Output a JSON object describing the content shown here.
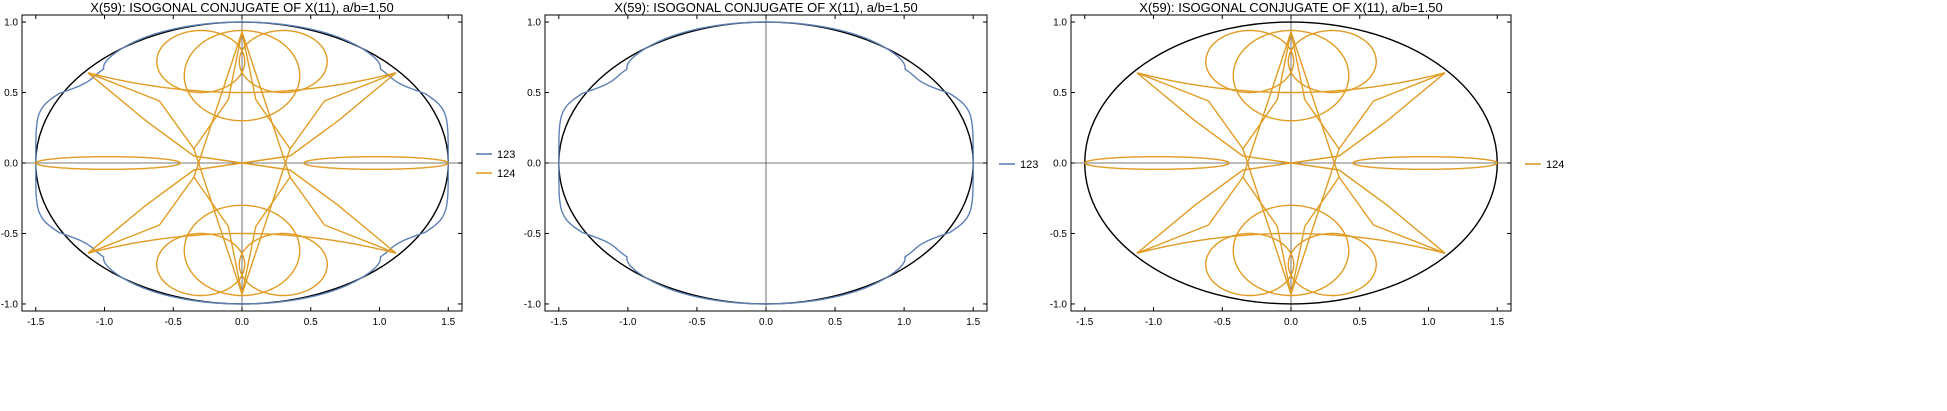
{
  "colors": {
    "s123": "#5e81b5",
    "s124": "#e19c24",
    "ellipse": "#000000",
    "frame": "#000000",
    "axis": "#4d4d4d",
    "text": "#000000"
  },
  "chart_data": [
    {
      "type": "line",
      "title": "X(59): ISOGONAL CONJUGATE OF X(11), a/b=1.50",
      "xlabel": "",
      "ylabel": "",
      "xlim": [
        -1.6,
        1.6
      ],
      "ylim": [
        -1.05,
        1.05
      ],
      "xticks": [
        -1.5,
        -1.0,
        -0.5,
        0.0,
        0.5,
        1.0,
        1.5
      ],
      "xtick_labels": [
        "-1.5",
        "-1.0",
        "-0.5",
        "0.0",
        "0.5",
        "1.0",
        "1.5"
      ],
      "yticks": [
        -1.0,
        -0.5,
        0.0,
        0.5,
        1.0
      ],
      "ytick_labels": [
        "-1.0",
        "-0.5",
        "0.0",
        "0.5",
        "1.0"
      ],
      "grid": false,
      "legend_position": "right",
      "ellipse": {
        "a": 1.5,
        "b": 1.0
      },
      "series": [
        {
          "name": "123",
          "color_key": "s123"
        },
        {
          "name": "124",
          "color_key": "s124"
        }
      ]
    },
    {
      "type": "line",
      "title": "X(59): ISOGONAL CONJUGATE OF X(11), a/b=1.50",
      "xlabel": "",
      "ylabel": "",
      "xlim": [
        -1.6,
        1.6
      ],
      "ylim": [
        -1.05,
        1.05
      ],
      "xticks": [
        -1.5,
        -1.0,
        -0.5,
        0.0,
        0.5,
        1.0,
        1.5
      ],
      "xtick_labels": [
        "-1.5",
        "-1.0",
        "-0.5",
        "0.0",
        "0.5",
        "1.0",
        "1.5"
      ],
      "yticks": [
        -1.0,
        -0.5,
        0.0,
        0.5,
        1.0
      ],
      "ytick_labels": [
        "-1.0",
        "-0.5",
        "0.0",
        "0.5",
        "1.0"
      ],
      "grid": false,
      "legend_position": "right",
      "ellipse": {
        "a": 1.5,
        "b": 1.0
      },
      "series": [
        {
          "name": "123",
          "color_key": "s123"
        }
      ]
    },
    {
      "type": "line",
      "title": "X(59): ISOGONAL CONJUGATE OF X(11), a/b=1.50",
      "xlabel": "",
      "ylabel": "",
      "xlim": [
        -1.6,
        1.6
      ],
      "ylim": [
        -1.05,
        1.05
      ],
      "xticks": [
        -1.5,
        -1.0,
        -0.5,
        0.0,
        0.5,
        1.0,
        1.5
      ],
      "xtick_labels": [
        "-1.5",
        "-1.0",
        "-0.5",
        "0.0",
        "0.5",
        "1.0",
        "1.5"
      ],
      "yticks": [
        -1.0,
        -0.5,
        0.0,
        0.5,
        1.0
      ],
      "ytick_labels": [
        "-1.0",
        "-0.5",
        "0.0",
        "0.5",
        "1.0"
      ],
      "grid": false,
      "legend_position": "right",
      "ellipse": {
        "a": 1.5,
        "b": 1.0
      },
      "series": [
        {
          "name": "124",
          "color_key": "s124"
        }
      ]
    }
  ]
}
